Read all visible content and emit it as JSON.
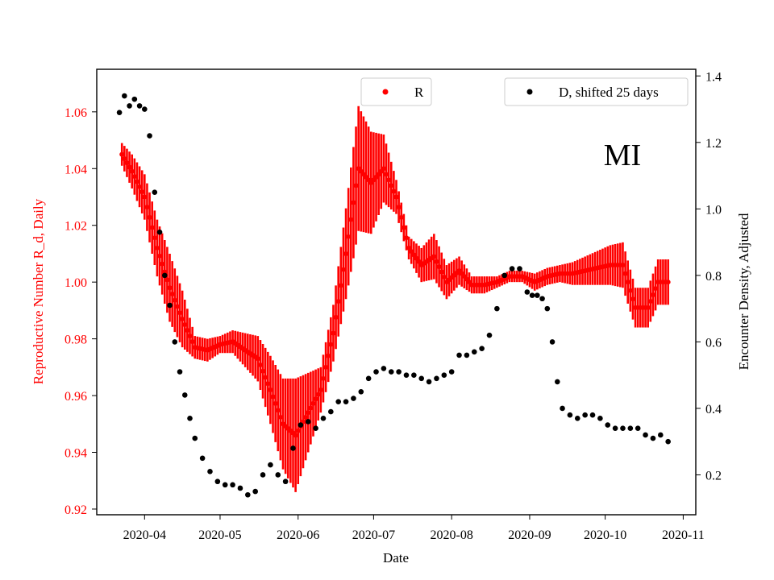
{
  "chart_data": {
    "type": "scatter",
    "annotation": "MI",
    "xlabel": "Date",
    "ylabel_left": "Reproductive Number R_d, Daily",
    "ylabel_right": "Encounter Density, Adjusted",
    "xlim": [
      "2020-03-13",
      "2020-11-06"
    ],
    "ylim_left": [
      0.918,
      1.075
    ],
    "ylim_right": [
      0.08,
      1.42
    ],
    "x_ticks": [
      "2020-04",
      "2020-05",
      "2020-06",
      "2020-07",
      "2020-08",
      "2020-09",
      "2020-10",
      "2020-11"
    ],
    "y_ticks_left": [
      "0.92",
      "0.94",
      "0.96",
      "0.98",
      "1.00",
      "1.02",
      "1.04",
      "1.06"
    ],
    "y_ticks_right": [
      "0.2",
      "0.4",
      "0.6",
      "0.8",
      "1.0",
      "1.2",
      "1.4"
    ],
    "grid": false,
    "colors": {
      "R": "#ff0000",
      "D": "#000000",
      "left_axis": "#ff0000",
      "right_axis": "#000000"
    },
    "legend": [
      {
        "label": "R",
        "color": "#ff0000",
        "placement": "top-center"
      },
      {
        "label": "D, shifted 25 days",
        "color": "#000000",
        "placement": "top-right"
      }
    ],
    "series": [
      {
        "name": "R",
        "axis": "left",
        "color": "#ff0000",
        "x": [
          "2020-03-23",
          "2020-03-27",
          "2020-04-01",
          "2020-04-06",
          "2020-04-11",
          "2020-04-16",
          "2020-04-21",
          "2020-04-26",
          "2020-05-01",
          "2020-05-06",
          "2020-05-11",
          "2020-05-16",
          "2020-05-21",
          "2020-05-26",
          "2020-05-31",
          "2020-06-05",
          "2020-06-10",
          "2020-06-15",
          "2020-06-20",
          "2020-06-25",
          "2020-06-30",
          "2020-07-05",
          "2020-07-10",
          "2020-07-15",
          "2020-07-20",
          "2020-07-25",
          "2020-07-30",
          "2020-08-04",
          "2020-08-09",
          "2020-08-14",
          "2020-08-19",
          "2020-08-24",
          "2020-08-29",
          "2020-09-03",
          "2020-09-08",
          "2020-09-13",
          "2020-09-18",
          "2020-09-23",
          "2020-09-28",
          "2020-10-03",
          "2020-10-08",
          "2020-10-13",
          "2020-10-18",
          "2020-10-22",
          "2020-10-26"
        ],
        "y": [
          1.045,
          1.039,
          1.03,
          1.012,
          0.998,
          0.987,
          0.977,
          0.976,
          0.978,
          0.979,
          0.976,
          0.973,
          0.962,
          0.95,
          0.946,
          0.954,
          0.962,
          0.982,
          1.01,
          1.04,
          1.035,
          1.04,
          1.03,
          1.012,
          1.006,
          1.009,
          1.0,
          1.004,
          0.999,
          0.999,
          1.0,
          1.002,
          1.002,
          1.0,
          1.002,
          1.003,
          1.003,
          1.004,
          1.005,
          1.006,
          1.006,
          0.991,
          0.991,
          1.0,
          1.0
        ],
        "err": [
          0.004,
          0.006,
          0.008,
          0.01,
          0.012,
          0.01,
          0.004,
          0.004,
          0.003,
          0.004,
          0.006,
          0.008,
          0.012,
          0.016,
          0.02,
          0.014,
          0.008,
          0.01,
          0.016,
          0.022,
          0.018,
          0.012,
          0.006,
          0.004,
          0.006,
          0.008,
          0.006,
          0.005,
          0.003,
          0.003,
          0.002,
          0.002,
          0.002,
          0.003,
          0.003,
          0.003,
          0.004,
          0.005,
          0.006,
          0.007,
          0.008,
          0.007,
          0.007,
          0.008,
          0.008
        ]
      },
      {
        "name": "D, shifted 25 days",
        "axis": "right",
        "color": "#000000",
        "x": [
          "2020-03-22",
          "2020-03-24",
          "2020-03-26",
          "2020-03-28",
          "2020-03-30",
          "2020-04-01",
          "2020-04-03",
          "2020-04-05",
          "2020-04-07",
          "2020-04-09",
          "2020-04-11",
          "2020-04-13",
          "2020-04-15",
          "2020-04-17",
          "2020-04-19",
          "2020-04-21",
          "2020-04-24",
          "2020-04-27",
          "2020-04-30",
          "2020-05-03",
          "2020-05-06",
          "2020-05-09",
          "2020-05-12",
          "2020-05-15",
          "2020-05-18",
          "2020-05-21",
          "2020-05-24",
          "2020-05-27",
          "2020-05-30",
          "2020-06-02",
          "2020-06-05",
          "2020-06-08",
          "2020-06-11",
          "2020-06-14",
          "2020-06-17",
          "2020-06-20",
          "2020-06-23",
          "2020-06-26",
          "2020-06-29",
          "2020-07-02",
          "2020-07-05",
          "2020-07-08",
          "2020-07-11",
          "2020-07-14",
          "2020-07-17",
          "2020-07-20",
          "2020-07-23",
          "2020-07-26",
          "2020-07-29",
          "2020-08-01",
          "2020-08-04",
          "2020-08-07",
          "2020-08-10",
          "2020-08-13",
          "2020-08-16",
          "2020-08-19",
          "2020-08-22",
          "2020-08-25",
          "2020-08-28",
          "2020-08-31",
          "2020-09-02",
          "2020-09-04",
          "2020-09-06",
          "2020-09-08",
          "2020-09-10",
          "2020-09-12",
          "2020-09-14",
          "2020-09-17",
          "2020-09-20",
          "2020-09-23",
          "2020-09-26",
          "2020-09-29",
          "2020-10-02",
          "2020-10-05",
          "2020-10-08",
          "2020-10-11",
          "2020-10-14",
          "2020-10-17",
          "2020-10-20",
          "2020-10-23",
          "2020-10-26"
        ],
        "y": [
          1.29,
          1.34,
          1.31,
          1.33,
          1.31,
          1.3,
          1.22,
          1.05,
          0.93,
          0.8,
          0.71,
          0.6,
          0.51,
          0.44,
          0.37,
          0.31,
          0.25,
          0.21,
          0.18,
          0.17,
          0.17,
          0.16,
          0.14,
          0.15,
          0.2,
          0.23,
          0.2,
          0.18,
          0.28,
          0.35,
          0.36,
          0.34,
          0.37,
          0.39,
          0.42,
          0.42,
          0.43,
          0.45,
          0.49,
          0.51,
          0.52,
          0.51,
          0.51,
          0.5,
          0.5,
          0.49,
          0.48,
          0.49,
          0.5,
          0.51,
          0.56,
          0.56,
          0.57,
          0.58,
          0.62,
          0.7,
          0.8,
          0.82,
          0.82,
          0.75,
          0.74,
          0.74,
          0.73,
          0.7,
          0.6,
          0.48,
          0.4,
          0.38,
          0.37,
          0.38,
          0.38,
          0.37,
          0.35,
          0.34,
          0.34,
          0.34,
          0.34,
          0.32,
          0.31,
          0.32,
          0.3
        ]
      }
    ]
  }
}
